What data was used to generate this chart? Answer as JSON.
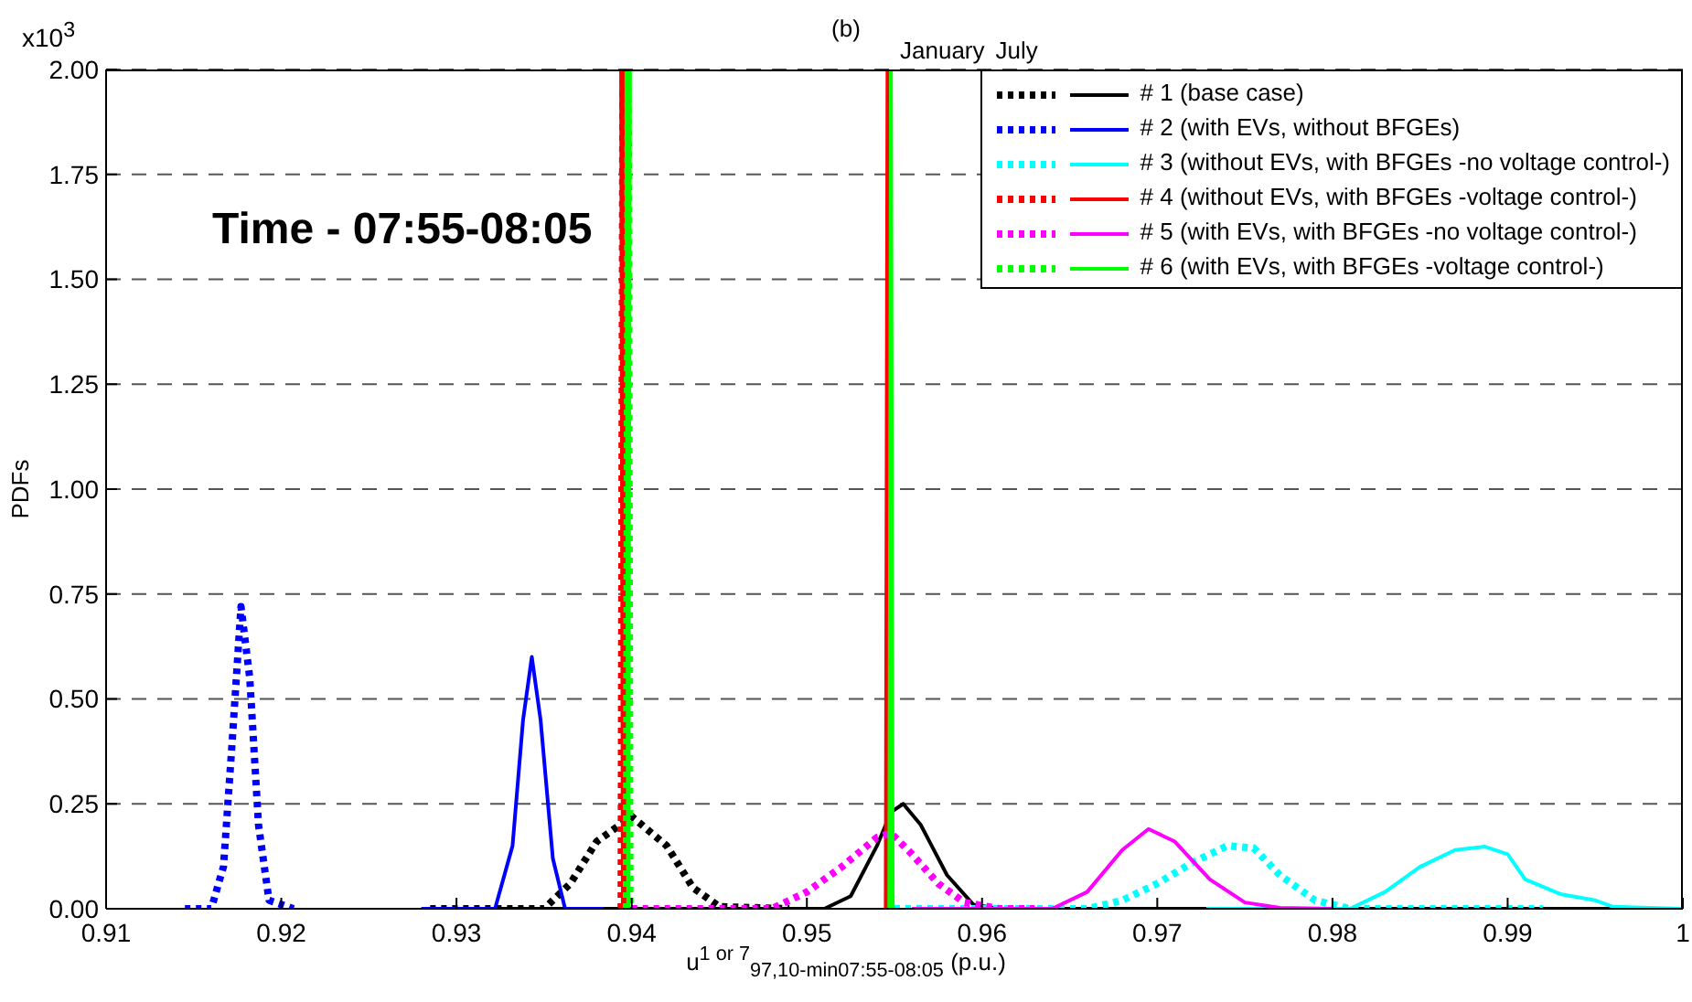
{
  "chart_data": {
    "type": "line",
    "title": "(b)",
    "xlabel": "u$^{1 or 7}$$_{97,10-min}$$_{07:55-08:05}$ (p.u.)",
    "ylabel": "PDFs",
    "annotations": [
      "x10$^{3}$",
      "Time - 07:55-08:05",
      "January",
      "July"
    ],
    "xlim": [
      0.91,
      1.0
    ],
    "xticks": [
      0.91,
      0.92,
      0.93,
      0.94,
      0.95,
      0.96,
      0.97,
      0.98,
      0.99,
      1
    ],
    "ylim": [
      0,
      2.0
    ],
    "yticks": [
      {
        "value": 0,
        "label": "0.00"
      },
      {
        "value": 0.25,
        "label": "0.25"
      },
      {
        "value": 0.5,
        "label": "0.50"
      },
      {
        "value": 0.75,
        "label": "0.75"
      },
      {
        "value": 1,
        "label": "1.00"
      },
      {
        "value": 1.25,
        "label": "1.25"
      },
      {
        "value": 1.5,
        "label": "1.50"
      },
      {
        "value": 1.75,
        "label": "1.75"
      },
      {
        "value": 2,
        "label": "2.00"
      }
    ],
    "grid": "y",
    "legend": "top right",
    "series": [
      {
        "color": "#000000",
        "line_style": "dotted",
        "x": [
          0.9285,
          0.935,
          0.9365,
          0.938,
          0.94,
          0.942,
          0.9435,
          0.945,
          0.949
        ],
        "values": [
          0,
          0,
          0.06,
          0.16,
          0.22,
          0.15,
          0.05,
          0.005,
          0
        ]
      },
      {
        "name": "# 1 (base case)",
        "color": "#000000",
        "line_style": "solid",
        "x": [
          0.928,
          0.951,
          0.9525,
          0.954,
          0.9548,
          0.9555,
          0.9565,
          0.958,
          0.9595,
          0.961,
          0.999
        ],
        "values": [
          0,
          0,
          0.03,
          0.15,
          0.23,
          0.25,
          0.2,
          0.08,
          0.01,
          0,
          0
        ]
      },
      {
        "color": "#0000ff",
        "line_style": "dotted",
        "x": [
          0.9145,
          0.916,
          0.9167,
          0.9172,
          0.9177,
          0.9182,
          0.9187,
          0.9193,
          0.9207
        ],
        "values": [
          0,
          0,
          0.1,
          0.4,
          0.72,
          0.55,
          0.2,
          0.02,
          0
        ]
      },
      {
        "name": "# 2 (with EVs, without BFGEs)",
        "color": "#0000ff",
        "line_style": "solid",
        "x": [
          0.928,
          0.9322,
          0.9332,
          0.9338,
          0.9343,
          0.9348,
          0.9355,
          0.9362,
          0.9384
        ],
        "values": [
          0,
          0,
          0.15,
          0.45,
          0.6,
          0.45,
          0.12,
          0,
          0
        ]
      },
      {
        "color": "#00ffff",
        "line_style": "dotted",
        "x": [
          0.955,
          0.966,
          0.968,
          0.97,
          0.972,
          0.974,
          0.9755,
          0.977,
          0.979,
          0.981,
          0.992
        ],
        "values": [
          0,
          0,
          0.02,
          0.06,
          0.11,
          0.15,
          0.145,
          0.08,
          0.02,
          0,
          0
        ]
      },
      {
        "name": "# 3 (without EVs, with BFGEs -no voltage control-)",
        "color": "#00ffff",
        "line_style": "solid",
        "x": [
          0.9728,
          0.981,
          0.983,
          0.985,
          0.987,
          0.9887,
          0.99,
          0.991,
          0.993,
          0.995,
          0.996,
          1.0
        ],
        "values": [
          0,
          0,
          0.04,
          0.1,
          0.14,
          0.148,
          0.13,
          0.07,
          0.035,
          0.02,
          0.005,
          0
        ]
      },
      {
        "color": "#ff0000",
        "line_style": "dotted",
        "x": [
          0.9394,
          0.9395,
          0.9396
        ],
        "values": [
          0,
          2.0,
          0
        ]
      },
      {
        "name": "# 4 (without EVs, with BFGEs -voltage control-)",
        "color": "#ff0000",
        "line_style": "solid",
        "x": [
          0.9545,
          0.9546,
          0.9547
        ],
        "values": [
          0,
          2.0,
          0
        ]
      },
      {
        "color": "#ff00ff",
        "line_style": "dotted",
        "x": [
          0.94,
          0.948,
          0.95,
          0.952,
          0.954,
          0.9548,
          0.956,
          0.9575,
          0.959,
          0.961,
          0.963
        ],
        "values": [
          0,
          0,
          0.04,
          0.1,
          0.17,
          0.18,
          0.13,
          0.06,
          0.015,
          0,
          0
        ]
      },
      {
        "name": "# 5 (with EVs, with BFGEs -no voltage control-)",
        "color": "#ff00ff",
        "line_style": "solid",
        "x": [
          0.956,
          0.964,
          0.966,
          0.968,
          0.9695,
          0.971,
          0.973,
          0.975,
          0.977,
          0.98
        ],
        "values": [
          0,
          0,
          0.04,
          0.14,
          0.19,
          0.16,
          0.07,
          0.015,
          0.002,
          0
        ]
      },
      {
        "color": "#00ff00",
        "line_style": "dotted",
        "x": [
          0.9397,
          0.9398,
          0.9399
        ],
        "values": [
          0,
          2.0,
          0
        ]
      },
      {
        "name": "# 6 (with EVs, with BFGEs -voltage control-)",
        "color": "#00ff00",
        "line_style": "solid",
        "x": [
          0.9547,
          0.9548,
          0.9549
        ],
        "values": [
          0,
          2.0,
          0
        ]
      }
    ]
  }
}
